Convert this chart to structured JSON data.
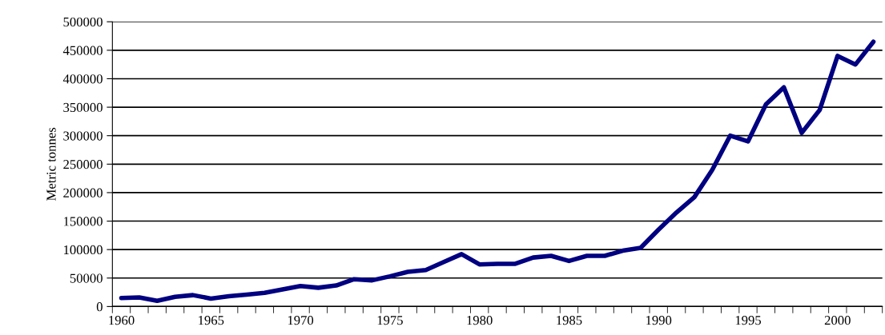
{
  "chart_data": {
    "type": "line",
    "ylabel": "Metric tonnes",
    "categories": [
      "1960",
      null,
      null,
      null,
      null,
      "1965",
      null,
      null,
      null,
      null,
      "1970",
      null,
      null,
      null,
      null,
      "1975",
      null,
      null,
      null,
      null,
      "1980",
      null,
      null,
      null,
      null,
      "1985",
      null,
      null,
      null,
      null,
      "1990",
      null,
      null,
      null,
      null,
      "1995",
      null,
      null,
      null,
      null,
      "2000",
      null,
      null
    ],
    "series": [
      {
        "color": "#000080",
        "values": [
          15000,
          16000,
          10000,
          17000,
          20000,
          14000,
          18000,
          21000,
          24000,
          30000,
          36000,
          33000,
          37000,
          48000,
          46000,
          53000,
          61000,
          64000,
          78000,
          92000,
          74000,
          75000,
          75000,
          86000,
          89000,
          80000,
          89000,
          89000,
          98000,
          103000,
          135000,
          165000,
          192000,
          240000,
          300000,
          290000,
          355000,
          385000,
          305000,
          345000,
          440000,
          425000,
          465000
        ]
      }
    ],
    "ylim": [
      0,
      500000
    ],
    "yticks": [
      0,
      50000,
      100000,
      150000,
      200000,
      250000,
      300000,
      350000,
      400000,
      450000,
      500000
    ],
    "grid": "y",
    "legend": false,
    "marker": "none",
    "line_style": "solid"
  }
}
